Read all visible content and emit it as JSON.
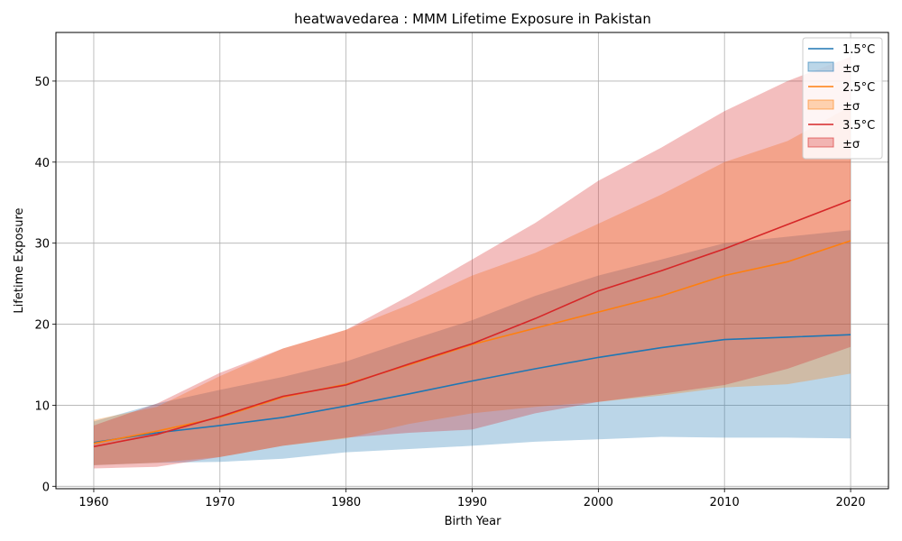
{
  "chart_data": {
    "type": "line",
    "title": "heatwavedarea : MMM Lifetime Exposure in Pakistan",
    "xlabel": "Birth Year",
    "ylabel": "Lifetime Exposure",
    "xlim": [
      1957,
      2023
    ],
    "ylim": [
      -0.3,
      56
    ],
    "xticks": [
      1960,
      1970,
      1980,
      1990,
      2000,
      2010,
      2020
    ],
    "yticks": [
      0,
      10,
      20,
      30,
      40,
      50
    ],
    "grid": true,
    "legend_position": "top-right",
    "x": [
      1960,
      1965,
      1970,
      1975,
      1980,
      1985,
      1990,
      1995,
      2000,
      2005,
      2010,
      2015,
      2020
    ],
    "series": [
      {
        "name": "1.5°C",
        "band_label": "±σ",
        "color": "#1f77b4",
        "values": [
          5.4,
          6.6,
          7.5,
          8.5,
          9.9,
          11.4,
          13.0,
          14.5,
          15.9,
          17.1,
          18.1,
          18.4,
          18.7
        ],
        "lower": [
          2.6,
          2.9,
          3.0,
          3.4,
          4.2,
          4.6,
          5.0,
          5.5,
          5.8,
          6.1,
          6.0,
          6.0,
          5.9
        ],
        "upper": [
          8.0,
          10.2,
          11.9,
          13.5,
          15.4,
          18.0,
          20.5,
          23.5,
          26.0,
          28.0,
          30.0,
          30.8,
          31.6
        ]
      },
      {
        "name": "2.5°C",
        "band_label": "±σ",
        "color": "#ff7f0e",
        "values": [
          5.3,
          6.8,
          8.5,
          11.0,
          12.6,
          15.0,
          17.5,
          19.5,
          21.5,
          23.5,
          26.0,
          27.7,
          30.3
        ],
        "lower": [
          2.6,
          2.9,
          3.6,
          5.0,
          5.9,
          7.7,
          9.0,
          9.8,
          10.4,
          11.2,
          12.2,
          12.6,
          13.9
        ],
        "upper": [
          8.2,
          9.8,
          13.6,
          17.0,
          19.3,
          22.4,
          26.0,
          28.8,
          32.4,
          36.0,
          40.0,
          42.6,
          46.9
        ]
      },
      {
        "name": "3.5°C",
        "band_label": "±σ",
        "color": "#d62728",
        "values": [
          4.9,
          6.4,
          8.6,
          11.1,
          12.5,
          15.1,
          17.6,
          20.7,
          24.1,
          26.6,
          29.3,
          32.3,
          35.3
        ],
        "lower": [
          2.2,
          2.4,
          3.6,
          5.0,
          6.0,
          6.6,
          7.0,
          9.0,
          10.4,
          11.4,
          12.5,
          14.5,
          17.2
        ],
        "upper": [
          7.5,
          10.2,
          14.0,
          17.0,
          19.3,
          23.5,
          28.0,
          32.5,
          37.7,
          41.8,
          46.3,
          50.0,
          53.0
        ]
      }
    ]
  }
}
